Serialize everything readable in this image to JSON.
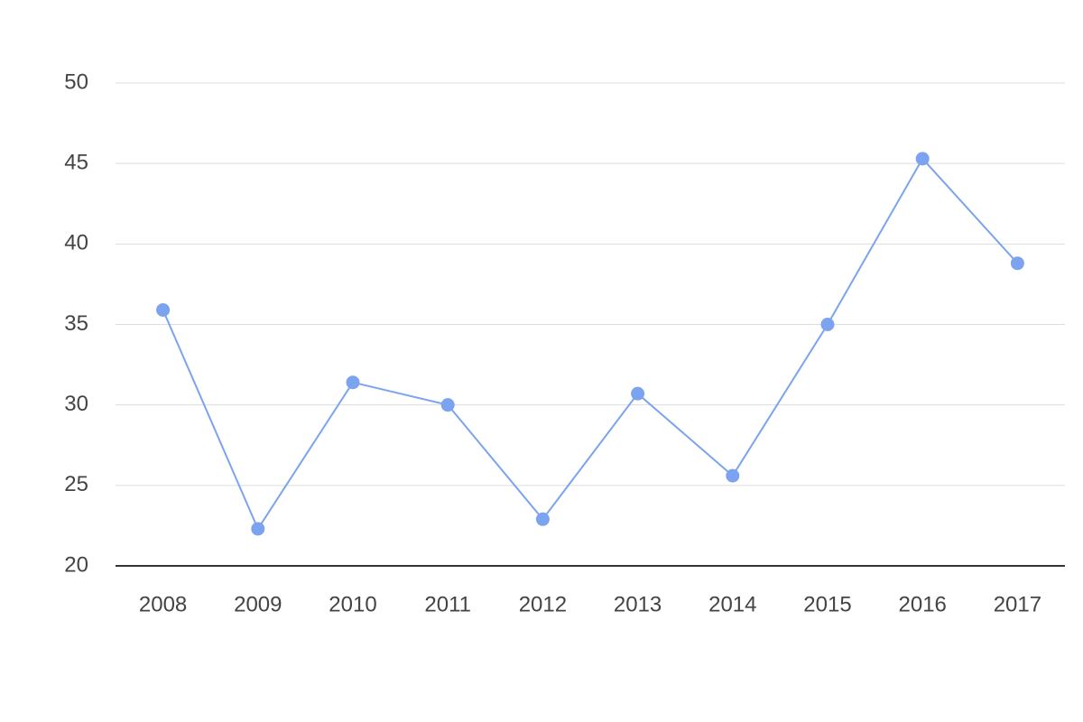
{
  "chart_data": {
    "type": "line",
    "categories": [
      "2008",
      "2009",
      "2010",
      "2011",
      "2012",
      "2013",
      "2014",
      "2015",
      "2016",
      "2017"
    ],
    "series": [
      {
        "color": "#7ba3ef",
        "values": [
          35.9,
          22.3,
          31.4,
          30.0,
          22.9,
          30.7,
          25.6,
          35.0,
          45.3,
          38.8
        ]
      }
    ],
    "ylim": [
      20,
      50
    ],
    "yticks": [
      20,
      25,
      30,
      35,
      40,
      45,
      50
    ],
    "grid": true
  }
}
